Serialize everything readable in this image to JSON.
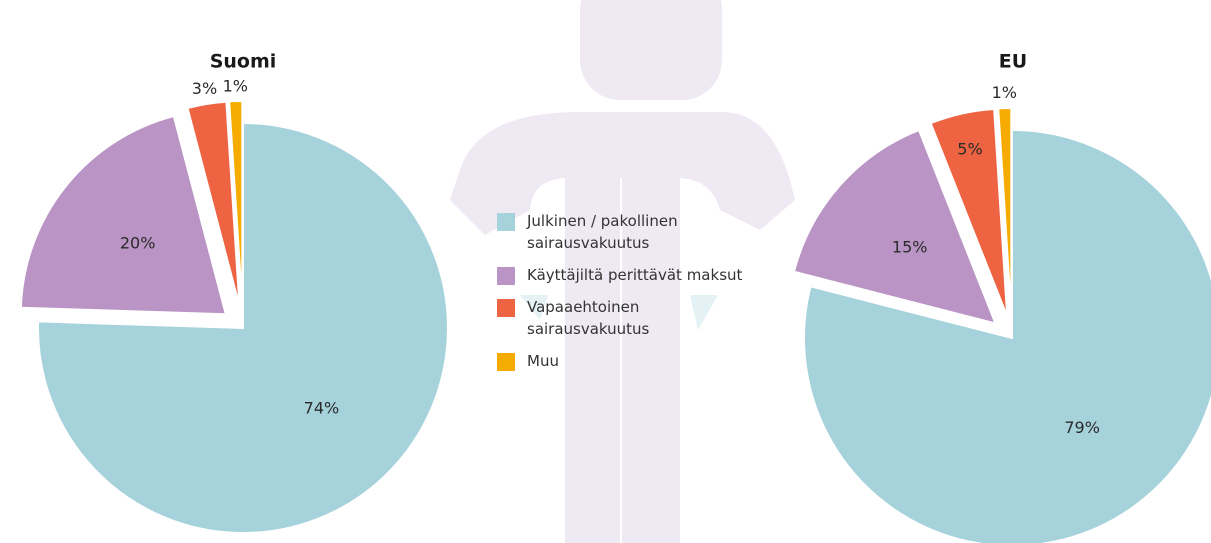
{
  "legend": {
    "categories": [
      "Julkinen / pakollinen\nsairausvakuutus",
      "Käyttäjiltä perittävät maksut",
      "Vapaaehtoinen\nsairausvakuutus",
      "Muu"
    ],
    "colors": [
      "#a6d2db",
      "#b994c4",
      "#ee6443",
      "#f6ab00"
    ]
  },
  "chart_data": [
    {
      "type": "pie",
      "title": "Suomi",
      "values": [
        74,
        20,
        3,
        1
      ],
      "value_labels": [
        "74%",
        "20%",
        "3%",
        "1%"
      ]
    },
    {
      "type": "pie",
      "title": "EU",
      "values": [
        79,
        15,
        5,
        1
      ],
      "value_labels": [
        "79%",
        "15%",
        "5%",
        "1%"
      ]
    }
  ]
}
